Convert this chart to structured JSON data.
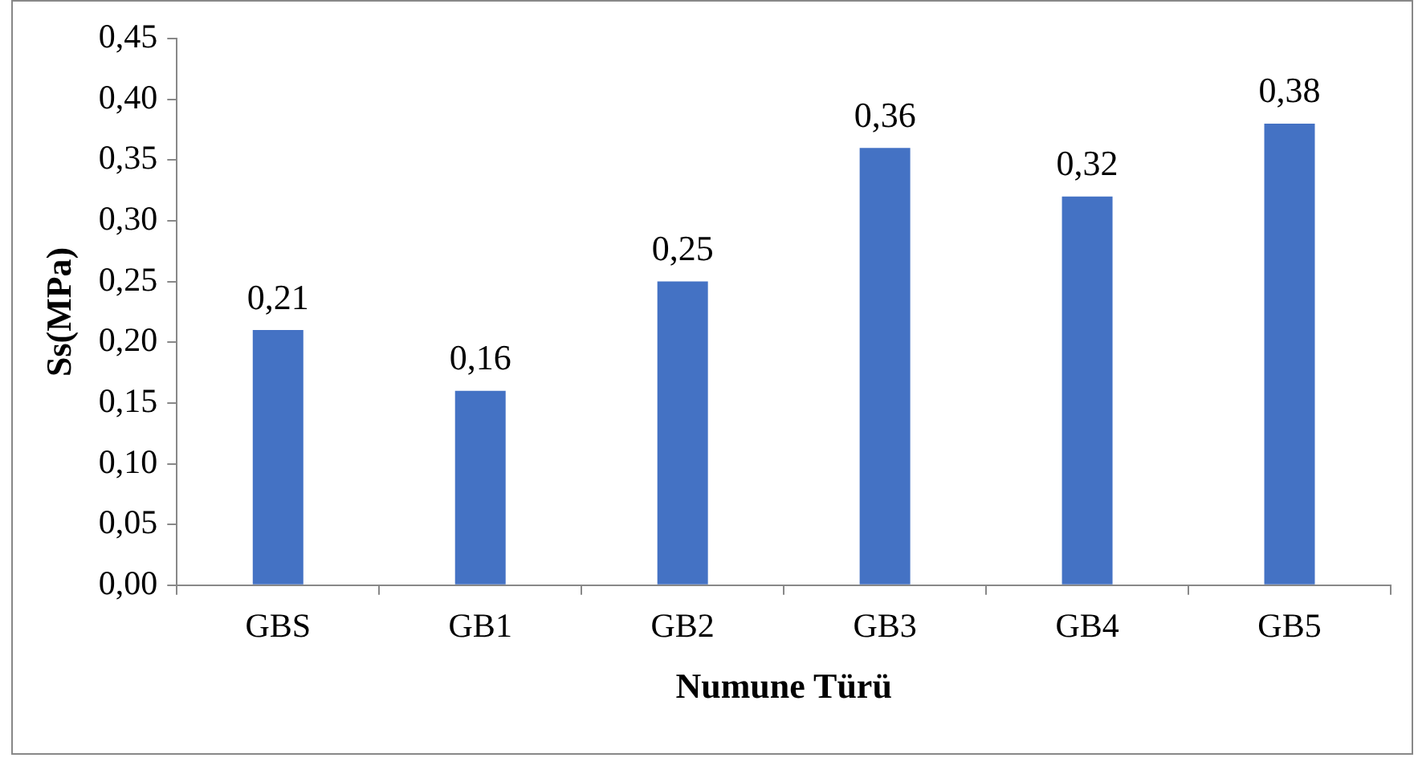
{
  "chart_data": {
    "type": "bar",
    "xlabel": "Numune Türü",
    "ylabel": "Ss(MPa)",
    "categories": [
      "GBS",
      "GB1",
      "GB2",
      "GB3",
      "GB4",
      "GB5"
    ],
    "values": [
      0.21,
      0.16,
      0.25,
      0.36,
      0.32,
      0.38
    ],
    "value_labels": [
      "0,21",
      "0,16",
      "0,25",
      "0,36",
      "0,32",
      "0,38"
    ],
    "color": "#4472c4",
    "ylim": [
      0,
      0.45
    ],
    "yticks": [
      {
        "value": 0,
        "label": "0,00"
      },
      {
        "value": 0.05,
        "label": "0,05"
      },
      {
        "value": 0.1,
        "label": "0,10"
      },
      {
        "value": 0.15,
        "label": "0,15"
      },
      {
        "value": 0.2,
        "label": "0,20"
      },
      {
        "value": 0.25,
        "label": "0,25"
      },
      {
        "value": 0.3,
        "label": "0,30"
      },
      {
        "value": 0.35,
        "label": "0,35"
      },
      {
        "value": 0.4,
        "label": "0,40"
      },
      {
        "value": 0.45,
        "label": "0,45"
      }
    ],
    "grid": false,
    "legend": false
  }
}
